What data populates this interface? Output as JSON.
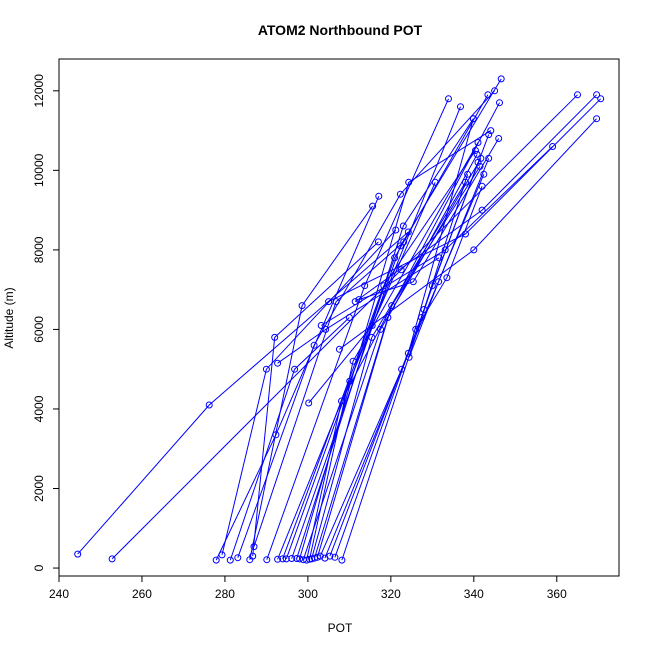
{
  "chart_data": {
    "type": "line",
    "title": "ATOM2 Northbound POT",
    "xlabel": "POT",
    "ylabel": "Altitude (m)",
    "xlim": [
      240,
      375
    ],
    "ylim": [
      -200,
      12800
    ],
    "xticks": [
      "240",
      "260",
      "280",
      "300",
      "320",
      "340",
      "360"
    ],
    "yticks": [
      "0",
      "2000",
      "4000",
      "6000",
      "8000",
      "10000",
      "12000"
    ],
    "line_color": "#0000ff",
    "marker": "open-circle",
    "grid": false,
    "legend": "none",
    "series": [
      {
        "x": [
          244.5,
          276.2,
          324.2
        ],
        "y": [
          350,
          4100,
          8450
        ]
      },
      {
        "x": [
          252.8,
          322.5,
          365.0
        ],
        "y": [
          230,
          7500,
          11900
        ]
      },
      {
        "x": [
          277.9,
          292.3,
          317.1
        ],
        "y": [
          200,
          3350,
          9350
        ]
      },
      {
        "x": [
          279.3,
          290.0,
          321.2
        ],
        "y": [
          330,
          5000,
          8500
        ]
      },
      {
        "x": [
          281.3,
          296.8,
          310.0
        ],
        "y": [
          200,
          5000,
          6300
        ]
      },
      {
        "x": [
          283.1,
          301.5,
          322.3,
          345.0
        ],
        "y": [
          260,
          5600,
          9400,
          12000
        ]
      },
      {
        "x": [
          286.0,
          298.6,
          315.6
        ],
        "y": [
          210,
          6600,
          9100
        ]
      },
      {
        "x": [
          286.7,
          292.0,
          317.0
        ],
        "y": [
          300,
          5800,
          8200
        ]
      },
      {
        "x": [
          287.0,
          306.8,
          323.1
        ],
        "y": [
          540,
          6700,
          8200
        ]
      },
      {
        "x": [
          290.1,
          313.7,
          333.9
        ],
        "y": [
          210,
          7100,
          11800
        ]
      },
      {
        "x": [
          292.7,
          310.1,
          336.8
        ],
        "y": [
          220,
          4700,
          11600
        ]
      },
      {
        "x": [
          293.9,
          318.3,
          340.4
        ],
        "y": [
          230,
          7100,
          10500
        ]
      },
      {
        "x": [
          294.8,
          320.9,
          343.4
        ],
        "y": [
          230,
          7800,
          11900
        ]
      },
      {
        "x": [
          296.1,
          322.3,
          346.6
        ],
        "y": [
          240,
          8100,
          12300
        ]
      },
      {
        "x": [
          297.3,
          323.0,
          339.9
        ],
        "y": [
          240,
          8600,
          11300
        ]
      },
      {
        "x": [
          298.0,
          324.3,
          344.1
        ],
        "y": [
          230,
          9700,
          11000
        ]
      },
      {
        "x": [
          298.9,
          317.5,
          341.7
        ],
        "y": [
          210,
          6000,
          10300
        ]
      },
      {
        "x": [
          299.7,
          308.1,
          346.2
        ],
        "y": [
          200,
          4200,
          11700
        ]
      },
      {
        "x": [
          300.4,
          310.9,
          341.0
        ],
        "y": [
          220,
          5200,
          10700
        ]
      },
      {
        "x": [
          300.9,
          315.4,
          338.0
        ],
        "y": [
          230,
          5800,
          9700
        ]
      },
      {
        "x": [
          301.6,
          319.3,
          340.8
        ],
        "y": [
          250,
          6300,
          10400
        ]
      },
      {
        "x": [
          302.3,
          320.2,
          341.5
        ],
        "y": [
          270,
          6600,
          10100
        ]
      },
      {
        "x": [
          303.0,
          322.6,
          342.4
        ],
        "y": [
          300,
          5000,
          9900
        ]
      },
      {
        "x": [
          304.1,
          324.2,
          339.9
        ],
        "y": [
          250,
          5400,
          11300
        ]
      },
      {
        "x": [
          305.3,
          327.4,
          338.5
        ],
        "y": [
          300,
          6300,
          9900
        ]
      },
      {
        "x": [
          306.5,
          328.0,
          341.0
        ],
        "y": [
          270,
          6500,
          10200
        ]
      },
      {
        "x": [
          308.2,
          330.0,
          343.6
        ],
        "y": [
          200,
          7100,
          10900
        ]
      },
      {
        "x": [
          300.2,
          315.5,
          330.7
        ],
        "y": [
          4150,
          6100,
          9700
        ]
      },
      {
        "x": [
          292.7,
          304.3,
          331.6
        ],
        "y": [
          5150,
          6000,
          7800
        ]
      },
      {
        "x": [
          303.2,
          333.1,
          359.0
        ],
        "y": [
          6100,
          8000,
          10600
        ]
      },
      {
        "x": [
          307.6,
          340.0,
          369.6
        ],
        "y": [
          5500,
          8000,
          11300
        ]
      },
      {
        "x": [
          311.4,
          342.0,
          369.6
        ],
        "y": [
          6700,
          9000,
          11900
        ]
      },
      {
        "x": [
          305.0,
          338.0,
          370.6
        ],
        "y": [
          6700,
          8400,
          11800
        ]
      },
      {
        "x": [
          312.3,
          325.4,
          346.0
        ],
        "y": [
          6750,
          7200,
          10800
        ]
      },
      {
        "x": [
          324.4,
          331.5,
          343.6
        ],
        "y": [
          5300,
          7200,
          10300
        ]
      },
      {
        "x": [
          326.0,
          333.5,
          342.0
        ],
        "y": [
          6000,
          7300,
          9600
        ]
      }
    ]
  }
}
